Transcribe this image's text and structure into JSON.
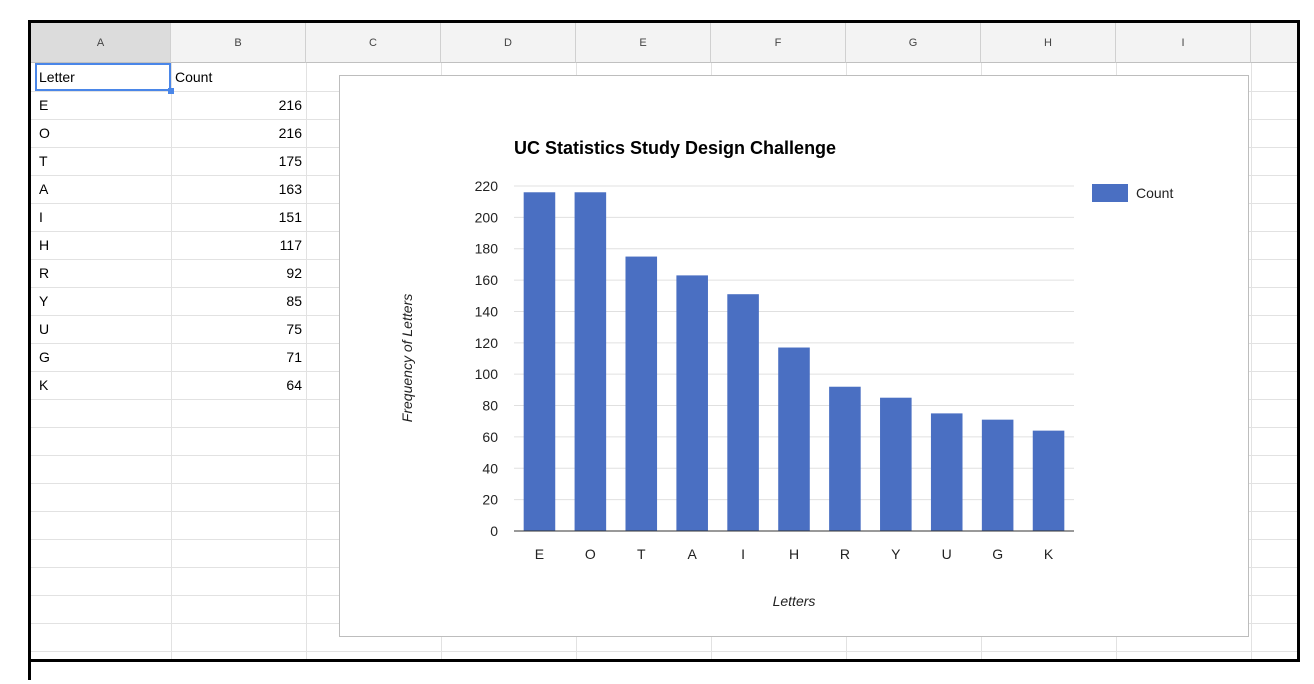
{
  "sheet": {
    "columns": [
      "A",
      "B",
      "C",
      "D",
      "E",
      "F",
      "G",
      "H",
      "I"
    ],
    "header_row": {
      "a": "Letter",
      "b": "Count"
    },
    "rows": [
      {
        "letter": "E",
        "count": "216"
      },
      {
        "letter": "O",
        "count": "216"
      },
      {
        "letter": "T",
        "count": "175"
      },
      {
        "letter": "A",
        "count": "163"
      },
      {
        "letter": "I",
        "count": "151"
      },
      {
        "letter": "H",
        "count": "117"
      },
      {
        "letter": "R",
        "count": "92"
      },
      {
        "letter": "Y",
        "count": "85"
      },
      {
        "letter": "U",
        "count": "75"
      },
      {
        "letter": "G",
        "count": "71"
      },
      {
        "letter": "K",
        "count": "64"
      }
    ]
  },
  "chart_data": {
    "type": "bar",
    "title": "UC Statistics Study Design Challenge",
    "xlabel": "Letters",
    "ylabel": "Frequency of Letters",
    "categories": [
      "E",
      "O",
      "T",
      "A",
      "I",
      "H",
      "R",
      "Y",
      "U",
      "G",
      "K"
    ],
    "series": [
      {
        "name": "Count",
        "values": [
          216,
          216,
          175,
          163,
          151,
          117,
          92,
          85,
          75,
          71,
          64
        ]
      }
    ],
    "ylim": [
      0,
      220
    ],
    "yticks": [
      0,
      20,
      40,
      60,
      80,
      100,
      120,
      140,
      160,
      180,
      200,
      220
    ],
    "grid": true,
    "legend": "right",
    "bar_color": "#4a6fc2"
  }
}
